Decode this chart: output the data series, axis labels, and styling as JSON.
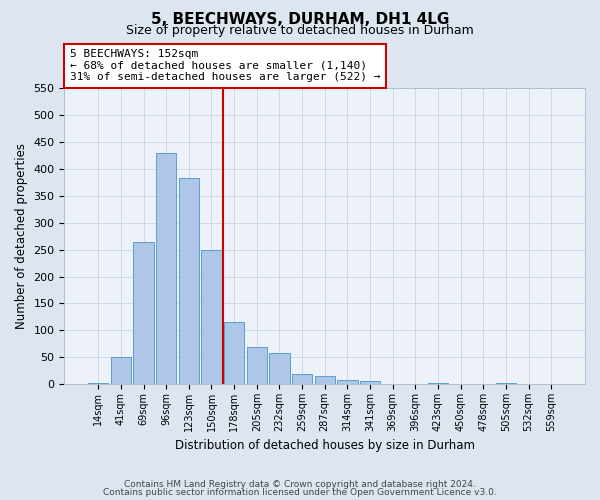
{
  "title": "5, BEECHWAYS, DURHAM, DH1 4LG",
  "subtitle": "Size of property relative to detached houses in Durham",
  "xlabel": "Distribution of detached houses by size in Durham",
  "ylabel": "Number of detached properties",
  "bar_labels": [
    "14sqm",
    "41sqm",
    "69sqm",
    "96sqm",
    "123sqm",
    "150sqm",
    "178sqm",
    "205sqm",
    "232sqm",
    "259sqm",
    "287sqm",
    "314sqm",
    "341sqm",
    "369sqm",
    "396sqm",
    "423sqm",
    "450sqm",
    "478sqm",
    "505sqm",
    "532sqm",
    "559sqm"
  ],
  "bar_values": [
    3,
    50,
    265,
    430,
    383,
    250,
    115,
    70,
    58,
    18,
    15,
    7,
    5,
    0,
    0,
    3,
    0,
    0,
    3,
    0,
    0
  ],
  "bar_color": "#aec6e8",
  "bar_edge_color": "#5a9fd4",
  "vline_color": "#cc0000",
  "annotation_title": "5 BEECHWAYS: 152sqm",
  "annotation_line1": "← 68% of detached houses are smaller (1,140)",
  "annotation_line2": "31% of semi-detached houses are larger (522) →",
  "annotation_box_color": "#ffffff",
  "annotation_box_edge": "#cc0000",
  "ylim": [
    0,
    550
  ],
  "yticks": [
    0,
    50,
    100,
    150,
    200,
    250,
    300,
    350,
    400,
    450,
    500,
    550
  ],
  "bg_color": "#dde6f0",
  "plot_bg_color": "#edf1f8",
  "footer_line1": "Contains HM Land Registry data © Crown copyright and database right 2024.",
  "footer_line2": "Contains public sector information licensed under the Open Government Licence v3.0."
}
